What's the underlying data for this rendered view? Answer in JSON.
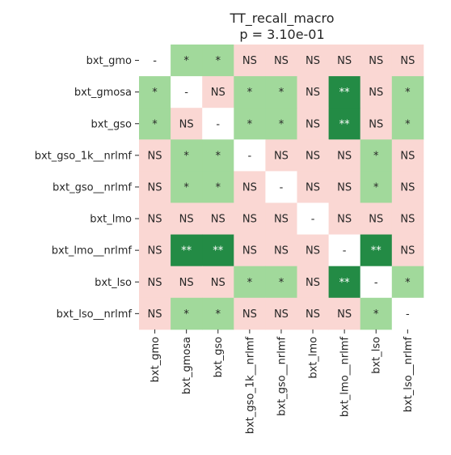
{
  "chart_data": {
    "type": "heatmap",
    "title": "TT_recall_macro",
    "subtitle": "p = 3.10e-01",
    "xlabel": "",
    "ylabel": "",
    "rows": [
      "bxt_gmo",
      "bxt_gmosa",
      "bxt_gso",
      "bxt_gso_1k__nrlmf",
      "bxt_gso__nrlmf",
      "bxt_lmo",
      "bxt_lmo__nrlmf",
      "bxt_lso",
      "bxt_lso__nrlmf"
    ],
    "columns": [
      "bxt_gmo",
      "bxt_gmosa",
      "bxt_gso",
      "bxt_gso_1k__nrlmf",
      "bxt_gso__nrlmf",
      "bxt_lmo",
      "bxt_lmo__nrlmf",
      "bxt_lso",
      "bxt_lso__nrlmf"
    ],
    "cells": [
      [
        "-",
        "*",
        "*",
        "NS",
        "NS",
        "NS",
        "NS",
        "NS",
        "NS"
      ],
      [
        "*",
        "-",
        "NS",
        "*",
        "*",
        "NS",
        "**",
        "NS",
        "*"
      ],
      [
        "*",
        "NS",
        "-",
        "*",
        "*",
        "NS",
        "**",
        "NS",
        "*"
      ],
      [
        "NS",
        "*",
        "*",
        "-",
        "NS",
        "NS",
        "NS",
        "*",
        "NS"
      ],
      [
        "NS",
        "*",
        "*",
        "NS",
        "-",
        "NS",
        "NS",
        "*",
        "NS"
      ],
      [
        "NS",
        "NS",
        "NS",
        "NS",
        "NS",
        "-",
        "NS",
        "NS",
        "NS"
      ],
      [
        "NS",
        "**",
        "**",
        "NS",
        "NS",
        "NS",
        "-",
        "**",
        "NS"
      ],
      [
        "NS",
        "NS",
        "NS",
        "*",
        "*",
        "NS",
        "**",
        "-",
        "*"
      ],
      [
        "NS",
        "*",
        "*",
        "NS",
        "NS",
        "NS",
        "NS",
        "*",
        "-"
      ]
    ],
    "colors": {
      "NS": "#fad7d3",
      "*": "#a1d99b",
      "**": "#238b45",
      "-": "#ffffff"
    },
    "text_colors": {
      "NS": "#262626",
      "*": "#262626",
      "**": "#ffffff",
      "-": "#262626"
    },
    "grid": false,
    "legend": "none"
  }
}
